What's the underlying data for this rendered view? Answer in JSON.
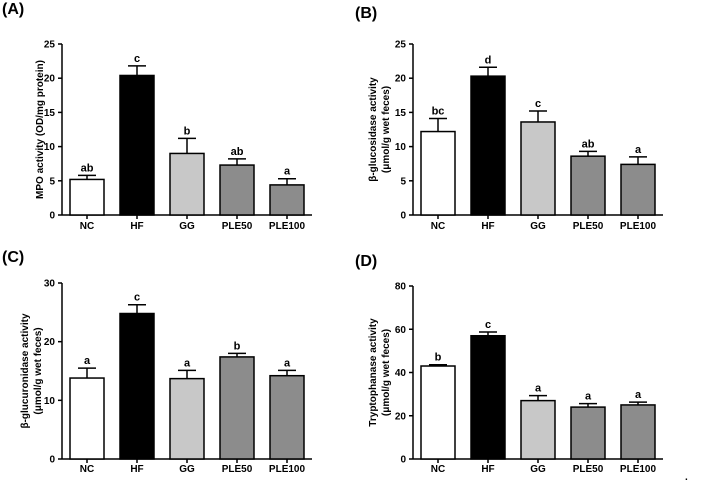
{
  "figure": {
    "trailing_mark": "."
  },
  "chart_data": [
    {
      "type": "bar",
      "panel_label": "(A)",
      "ylabel_lines": [
        "MPO activity (OD/mg protein)"
      ],
      "ylim": [
        0,
        25
      ],
      "yticks": [
        0,
        5,
        10,
        15,
        20,
        25
      ],
      "categories": [
        "NC",
        "HF",
        "GG",
        "PLE50",
        "PLE100"
      ],
      "values": [
        5.2,
        20.4,
        9.0,
        7.3,
        4.4
      ],
      "errors": [
        0.6,
        1.4,
        2.2,
        0.9,
        0.9
      ],
      "labels": [
        "ab",
        "c",
        "b",
        "ab",
        "a"
      ]
    },
    {
      "type": "bar",
      "panel_label": "(B)",
      "ylabel_lines": [
        "β-glucosidase activity",
        "(μmol/g wet feces)"
      ],
      "ylim": [
        0,
        25
      ],
      "yticks": [
        0,
        5,
        10,
        15,
        20,
        25
      ],
      "categories": [
        "NC",
        "HF",
        "GG",
        "PLE50",
        "PLE100"
      ],
      "values": [
        12.2,
        20.3,
        13.6,
        8.6,
        7.4
      ],
      "errors": [
        1.9,
        1.3,
        1.6,
        0.7,
        1.1
      ],
      "labels": [
        "bc",
        "d",
        "c",
        "ab",
        "a"
      ]
    },
    {
      "type": "bar",
      "panel_label": "(C)",
      "ylabel_lines": [
        "β-glucuronidase activity",
        "(μmol/g wet feces)"
      ],
      "ylim": [
        0,
        30
      ],
      "yticks": [
        0,
        10,
        20,
        30
      ],
      "categories": [
        "NC",
        "HF",
        "GG",
        "PLE50",
        "PLE100"
      ],
      "values": [
        13.8,
        24.8,
        13.7,
        17.4,
        14.2
      ],
      "errors": [
        1.7,
        1.5,
        1.4,
        0.6,
        0.9
      ],
      "labels": [
        "a",
        "c",
        "a",
        "b",
        "a"
      ]
    },
    {
      "type": "bar",
      "panel_label": "(D)",
      "ylabel_lines": [
        "Tryptophanase activity",
        "(μmol/g wet feces)"
      ],
      "ylim": [
        0,
        80
      ],
      "yticks": [
        0,
        20,
        40,
        60,
        80
      ],
      "categories": [
        "NC",
        "HF",
        "GG",
        "PLE50",
        "PLE100"
      ],
      "values": [
        43.0,
        57.0,
        27.0,
        24.0,
        25.0
      ],
      "errors": [
        0.6,
        1.7,
        2.3,
        1.6,
        1.3
      ],
      "labels": [
        "b",
        "c",
        "a",
        "a",
        "a"
      ]
    }
  ],
  "colors": {
    "bar_fills": [
      "#ffffff",
      "#000000",
      "#c8c8c8",
      "#8c8c8c",
      "#8c8c8c"
    ],
    "axis": "#000000"
  }
}
